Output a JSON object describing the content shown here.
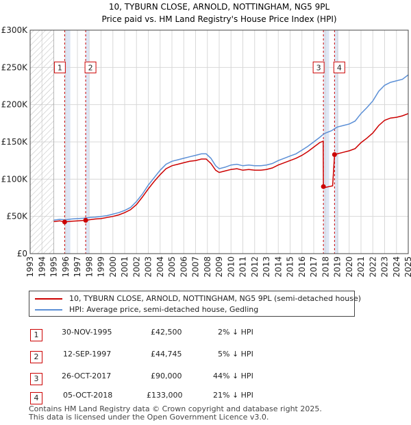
{
  "chart_data": {
    "type": "line",
    "title": "10, TYBURN CLOSE, ARNOLD, NOTTINGHAM, NG5 9PL",
    "subtitle": "Price paid vs. HM Land Registry's House Price Index (HPI)",
    "xlim": [
      1993,
      2025
    ],
    "ylim": [
      0,
      300000
    ],
    "y_ticks": [
      0,
      50000,
      100000,
      150000,
      200000,
      250000,
      300000
    ],
    "y_tick_labels": [
      "£0",
      "£50K",
      "£100K",
      "£150K",
      "£200K",
      "£250K",
      "£300K"
    ],
    "x_ticks": [
      1993,
      1994,
      1995,
      1996,
      1997,
      1998,
      1999,
      2000,
      2001,
      2002,
      2003,
      2004,
      2005,
      2006,
      2007,
      2008,
      2009,
      2010,
      2011,
      2012,
      2013,
      2014,
      2015,
      2016,
      2017,
      2018,
      2019,
      2020,
      2021,
      2022,
      2023,
      2024,
      2025
    ],
    "x_tick_labels": [
      "1993",
      "1994",
      "1995",
      "1996",
      "1997",
      "1998",
      "1999",
      "2000",
      "2001",
      "2002",
      "2003",
      "2004",
      "2005",
      "2006",
      "2007",
      "2008",
      "2009",
      "2010",
      "2011",
      "2012",
      "2013",
      "2014",
      "2015",
      "2016",
      "2017",
      "2018",
      "2019",
      "2020",
      "2021",
      "2022",
      "2023",
      "2024",
      "2025"
    ],
    "hatch_region": [
      1993,
      1995
    ],
    "highlight_regions": [
      [
        1995.92,
        1996.4
      ],
      [
        1997.7,
        1998.0
      ],
      [
        2017.82,
        2018.3
      ],
      [
        2018.76,
        2019.1
      ]
    ],
    "series": [
      {
        "name": "HPI: Average price, semi-detached house, Gedling",
        "color": "#5b8fd6",
        "points": [
          [
            1995.0,
            45000
          ],
          [
            1995.5,
            46000
          ],
          [
            1996.0,
            45500
          ],
          [
            1996.5,
            46500
          ],
          [
            1997.0,
            47000
          ],
          [
            1997.5,
            47500
          ],
          [
            1998.0,
            48500
          ],
          [
            1998.5,
            49000
          ],
          [
            1999.0,
            50000
          ],
          [
            1999.5,
            51000
          ],
          [
            2000.0,
            53000
          ],
          [
            2000.5,
            55000
          ],
          [
            2001.0,
            58000
          ],
          [
            2001.5,
            62000
          ],
          [
            2002.0,
            70000
          ],
          [
            2002.5,
            80000
          ],
          [
            2003.0,
            92000
          ],
          [
            2003.5,
            102000
          ],
          [
            2004.0,
            112000
          ],
          [
            2004.5,
            120000
          ],
          [
            2005.0,
            124000
          ],
          [
            2005.5,
            126000
          ],
          [
            2006.0,
            128000
          ],
          [
            2006.5,
            130000
          ],
          [
            2007.0,
            132000
          ],
          [
            2007.5,
            134000
          ],
          [
            2007.9,
            134000
          ],
          [
            2008.3,
            128000
          ],
          [
            2008.7,
            118000
          ],
          [
            2009.0,
            114000
          ],
          [
            2009.5,
            116000
          ],
          [
            2010.0,
            119000
          ],
          [
            2010.5,
            120000
          ],
          [
            2011.0,
            118000
          ],
          [
            2011.5,
            119000
          ],
          [
            2012.0,
            118000
          ],
          [
            2012.5,
            118000
          ],
          [
            2013.0,
            119000
          ],
          [
            2013.5,
            121000
          ],
          [
            2014.0,
            125000
          ],
          [
            2014.5,
            128000
          ],
          [
            2015.0,
            131000
          ],
          [
            2015.5,
            134000
          ],
          [
            2016.0,
            139000
          ],
          [
            2016.5,
            144000
          ],
          [
            2017.0,
            150000
          ],
          [
            2017.5,
            156000
          ],
          [
            2017.8,
            160000
          ],
          [
            2018.0,
            162000
          ],
          [
            2018.5,
            165000
          ],
          [
            2018.8,
            168000
          ],
          [
            2019.0,
            170000
          ],
          [
            2019.5,
            172000
          ],
          [
            2020.0,
            174000
          ],
          [
            2020.5,
            178000
          ],
          [
            2021.0,
            188000
          ],
          [
            2021.5,
            196000
          ],
          [
            2022.0,
            205000
          ],
          [
            2022.5,
            218000
          ],
          [
            2023.0,
            226000
          ],
          [
            2023.5,
            230000
          ],
          [
            2024.0,
            232000
          ],
          [
            2024.5,
            234000
          ],
          [
            2025.0,
            240000
          ]
        ]
      },
      {
        "name": "10, TYBURN CLOSE, ARNOLD, NOTTINGHAM, NG5 9PL (semi-detached house)",
        "color": "#cc0000",
        "points": [
          [
            1995.0,
            43000
          ],
          [
            1995.5,
            44000
          ],
          [
            1995.92,
            42500
          ],
          [
            1996.5,
            43500
          ],
          [
            1997.0,
            44000
          ],
          [
            1997.7,
            44745
          ],
          [
            1998.0,
            45500
          ],
          [
            1998.5,
            46500
          ],
          [
            1999.0,
            47000
          ],
          [
            1999.5,
            48500
          ],
          [
            2000.0,
            50000
          ],
          [
            2000.5,
            52000
          ],
          [
            2001.0,
            55000
          ],
          [
            2001.5,
            59000
          ],
          [
            2002.0,
            66000
          ],
          [
            2002.5,
            76000
          ],
          [
            2003.0,
            87000
          ],
          [
            2003.5,
            97000
          ],
          [
            2004.0,
            106000
          ],
          [
            2004.5,
            114000
          ],
          [
            2005.0,
            118000
          ],
          [
            2005.5,
            120000
          ],
          [
            2006.0,
            122000
          ],
          [
            2006.5,
            124000
          ],
          [
            2007.0,
            125000
          ],
          [
            2007.5,
            127000
          ],
          [
            2007.9,
            127000
          ],
          [
            2008.3,
            121000
          ],
          [
            2008.7,
            112000
          ],
          [
            2009.0,
            109000
          ],
          [
            2009.5,
            111000
          ],
          [
            2010.0,
            113000
          ],
          [
            2010.5,
            114000
          ],
          [
            2011.0,
            112000
          ],
          [
            2011.5,
            113000
          ],
          [
            2012.0,
            112000
          ],
          [
            2012.5,
            112000
          ],
          [
            2013.0,
            113000
          ],
          [
            2013.5,
            115000
          ],
          [
            2014.0,
            119000
          ],
          [
            2014.5,
            122000
          ],
          [
            2015.0,
            125000
          ],
          [
            2015.5,
            128000
          ],
          [
            2016.0,
            132000
          ],
          [
            2016.5,
            137000
          ],
          [
            2017.0,
            143000
          ],
          [
            2017.5,
            149000
          ],
          [
            2017.8,
            151000
          ],
          [
            2017.82,
            90000
          ],
          [
            2018.0,
            89000
          ],
          [
            2018.3,
            90000
          ],
          [
            2018.6,
            91000
          ],
          [
            2018.76,
            133000
          ],
          [
            2019.0,
            134000
          ],
          [
            2019.5,
            136000
          ],
          [
            2020.0,
            138000
          ],
          [
            2020.5,
            141000
          ],
          [
            2021.0,
            149000
          ],
          [
            2021.5,
            155000
          ],
          [
            2022.0,
            162000
          ],
          [
            2022.5,
            172000
          ],
          [
            2023.0,
            179000
          ],
          [
            2023.5,
            182000
          ],
          [
            2024.0,
            183000
          ],
          [
            2024.5,
            185000
          ],
          [
            2025.0,
            188000
          ]
        ]
      }
    ],
    "sales": [
      {
        "label": "1",
        "date": "30-NOV-1995",
        "x": 1995.92,
        "price": 42500,
        "price_text": "£42,500",
        "hpi_text": "2% ↓ HPI"
      },
      {
        "label": "2",
        "date": "12-SEP-1997",
        "x": 1997.7,
        "price": 44745,
        "price_text": "£44,745",
        "hpi_text": "5% ↓ HPI"
      },
      {
        "label": "3",
        "date": "26-OCT-2017",
        "x": 2017.82,
        "price": 90000,
        "price_text": "£90,000",
        "hpi_text": "44% ↓ HPI"
      },
      {
        "label": "4",
        "date": "05-OCT-2018",
        "x": 2018.76,
        "price": 133000,
        "price_text": "£133,000",
        "hpi_text": "21% ↓ HPI"
      }
    ],
    "marker_box_labels_value": 250000
  },
  "legend": {
    "property_label": "10, TYBURN CLOSE, ARNOLD, NOTTINGHAM, NG5 9PL (semi-detached house)",
    "hpi_label": "HPI: Average price, semi-detached house, Gedling"
  },
  "footer": {
    "line1": "Contains HM Land Registry data © Crown copyright and database right 2025.",
    "line2": "This data is licensed under the Open Government Licence v3.0."
  },
  "colors": {
    "property": "#cc0000",
    "hpi": "#5b8fd6",
    "highlight": "#dde6f5",
    "grid": "#d8d8d8"
  }
}
